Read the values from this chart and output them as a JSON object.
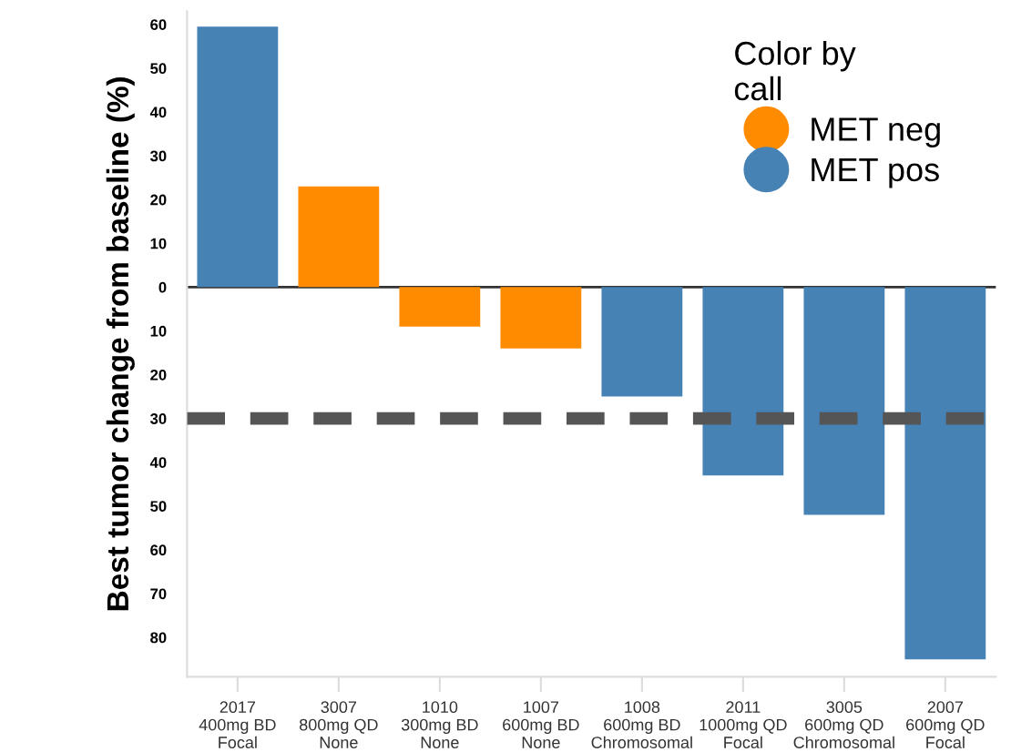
{
  "chart_data": {
    "type": "bar",
    "ylabel": "Best tumor change from baseline (%)",
    "legend_title": "Color by\ncall",
    "categories": [
      "2017\n400mg BD\nFocal",
      "3007\n800mg QD\nNone",
      "1010\n300mg BD\nNone",
      "1007\n600mg BD\nNone",
      "1008\n600mg BD\nChromosomal",
      "2011\n1000mg QD\nFocal",
      "3005\n600mg QD\nChromosomal",
      "2007\n600mg QD\nFocal"
    ],
    "series": [
      {
        "name": "MET neg",
        "color": "#ff8c00",
        "values": [
          null,
          23,
          -9,
          -14,
          null,
          null,
          null,
          null
        ]
      },
      {
        "name": "MET pos",
        "color": "#4682b4",
        "values": [
          59.5,
          null,
          null,
          null,
          -25,
          -43,
          -52,
          -85
        ]
      }
    ],
    "ylim": [
      -89,
      63
    ],
    "yticks": [
      60,
      50,
      40,
      30,
      20,
      10,
      0,
      {
        "value": -10,
        "label": "10"
      },
      {
        "value": -20,
        "label": "20"
      },
      {
        "value": -30,
        "label": "30"
      },
      {
        "value": -40,
        "label": "40"
      },
      {
        "value": -50,
        "label": "50"
      },
      {
        "value": -60,
        "label": "60"
      },
      {
        "value": -70,
        "label": "70"
      },
      {
        "value": -80,
        "label": "80"
      }
    ],
    "ref_lines": [
      {
        "axis": "y",
        "value": -30,
        "color": "#555555",
        "line_style": "dashed"
      },
      {
        "axis": "y",
        "value": 0,
        "color": "#333333",
        "line_style": "solid"
      }
    ],
    "grid": false,
    "legend": "top right"
  }
}
